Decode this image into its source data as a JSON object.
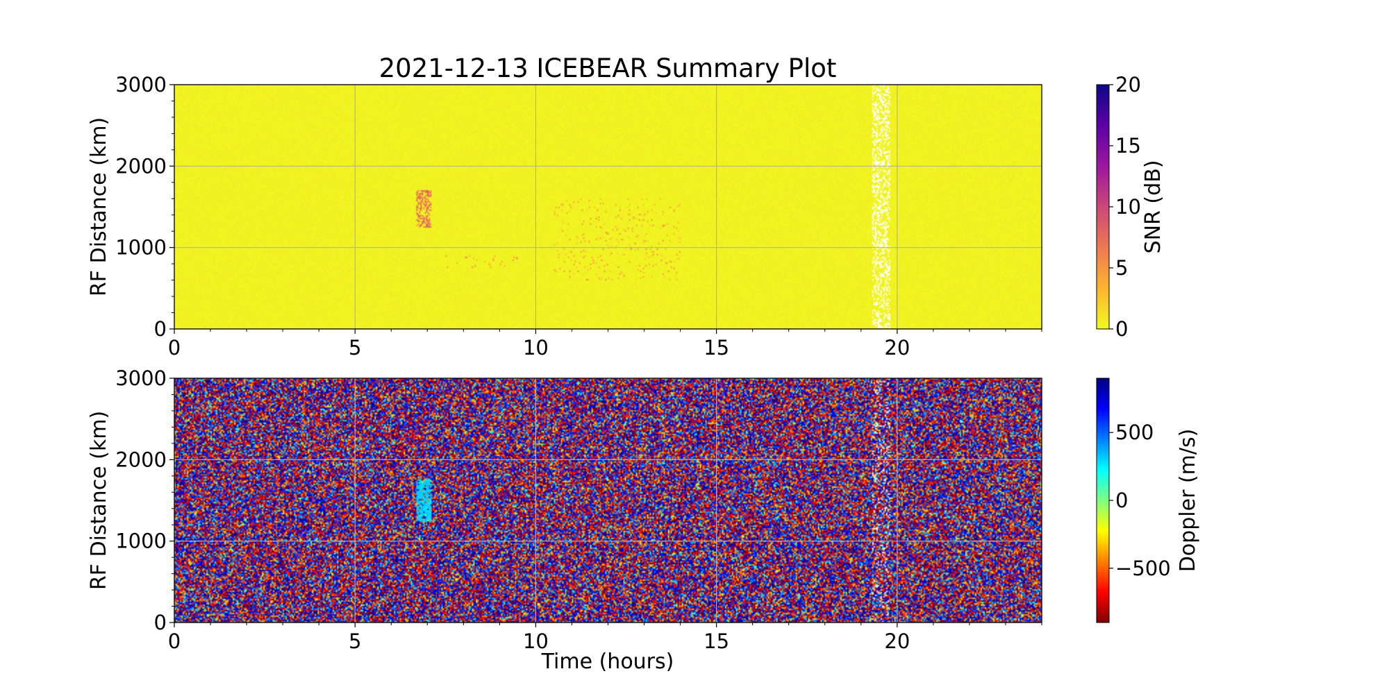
{
  "figure": {
    "title": "2021-12-13 ICEBEAR Summary Plot"
  },
  "chart_data": [
    {
      "type": "heatmap",
      "panel": "snr",
      "xlabel": "",
      "ylabel": "RF Distance (km)",
      "xlim": [
        0,
        24
      ],
      "ylim": [
        0,
        3000
      ],
      "xticks": [
        0,
        5,
        10,
        15,
        20
      ],
      "yticks": [
        0,
        1000,
        2000,
        3000
      ],
      "grid": true,
      "background_value": 0,
      "colorbar": {
        "label": "SNR (dB)",
        "range": [
          0,
          20
        ],
        "ticks": [
          0,
          5,
          10,
          15,
          20
        ],
        "colormap": "plasma_r",
        "colors": [
          "#f0f921",
          "#fdb42f",
          "#ed7953",
          "#cc4778",
          "#9c179e",
          "#5c01a6",
          "#0d0887"
        ]
      },
      "features": [
        {
          "name": "echo cluster",
          "time_hours": [
            6.7,
            7.1
          ],
          "distance_km": [
            1250,
            1700
          ],
          "snr_db": [
            5,
            9
          ]
        },
        {
          "name": "scattered echoes",
          "time_hours": [
            7.5,
            9.5
          ],
          "distance_km": [
            750,
            900
          ],
          "snr_db": [
            3,
            6
          ]
        },
        {
          "name": "scattered echoes",
          "time_hours": [
            10.5,
            14.0
          ],
          "distance_km": [
            600,
            1600
          ],
          "snr_db": [
            2,
            6
          ]
        },
        {
          "name": "data gap",
          "time_hours": [
            19.3,
            19.8
          ],
          "distance_km": [
            0,
            3000
          ]
        }
      ]
    },
    {
      "type": "heatmap",
      "panel": "doppler",
      "xlabel": "Time (hours)",
      "ylabel": "RF Distance (km)",
      "xlim": [
        0,
        24
      ],
      "ylim": [
        0,
        3000
      ],
      "xticks": [
        0,
        5,
        10,
        15,
        20
      ],
      "yticks": [
        0,
        1000,
        2000,
        3000
      ],
      "grid": true,
      "colorbar": {
        "label": "Doppler (m/s)",
        "range": [
          -900,
          900
        ],
        "ticks": [
          -500,
          0,
          500
        ],
        "tick_labels": [
          "−500",
          "0",
          "500"
        ],
        "colormap": "jet_r",
        "colors": [
          "#7f0000",
          "#ff0000",
          "#ff7f00",
          "#ffff00",
          "#7fff7f",
          "#00ffff",
          "#007fff",
          "#0000ff",
          "#00007f"
        ]
      },
      "features": [
        {
          "name": "echo cluster",
          "time_hours": [
            6.7,
            7.1
          ],
          "distance_km": [
            1250,
            1750
          ],
          "doppler_ms": [
            250,
            350
          ]
        }
      ]
    }
  ]
}
